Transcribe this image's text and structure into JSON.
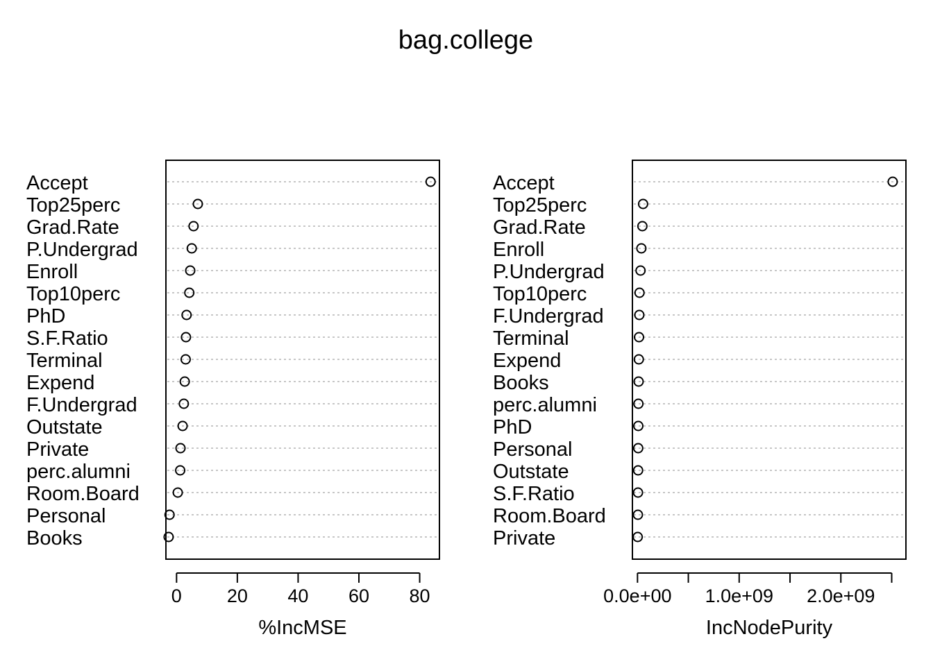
{
  "title": "bag.college",
  "chart_data": [
    {
      "type": "dotchart",
      "xlabel": "%IncMSE",
      "xlim": [
        -3.5,
        86.5
      ],
      "xticks": [
        0,
        20,
        40,
        60,
        80
      ],
      "xtick_labels": [
        "0",
        "20",
        "40",
        "60",
        "80"
      ],
      "grid": "dotted",
      "categories": [
        "Accept",
        "Top25perc",
        "Grad.Rate",
        "P.Undergrad",
        "Enroll",
        "Top10perc",
        "PhD",
        "S.F.Ratio",
        "Terminal",
        "Expend",
        "F.Undergrad",
        "Outstate",
        "Private",
        "perc.alumni",
        "Room.Board",
        "Personal",
        "Books"
      ],
      "values": [
        83.6,
        7.0,
        5.6,
        5.0,
        4.5,
        4.2,
        3.3,
        3.1,
        3.0,
        2.7,
        2.4,
        2.0,
        1.3,
        1.2,
        0.4,
        -2.3,
        -2.6
      ]
    },
    {
      "type": "dotchart",
      "xlabel": "IncNodePurity",
      "xlim": [
        -50000000.0,
        2640000000.0
      ],
      "xticks": [
        0,
        500000000,
        1000000000,
        1500000000,
        2000000000,
        2500000000
      ],
      "xtick_labels": [
        "0.0e+00",
        "",
        "1.0e+09",
        "",
        "2.0e+09",
        ""
      ],
      "grid": "dotted",
      "categories": [
        "Accept",
        "Top25perc",
        "Grad.Rate",
        "Enroll",
        "P.Undergrad",
        "Top10perc",
        "F.Undergrad",
        "Terminal",
        "Expend",
        "Books",
        "perc.alumni",
        "PhD",
        "Personal",
        "Outstate",
        "S.F.Ratio",
        "Room.Board",
        "Private"
      ],
      "values": [
        2510000000,
        55000000,
        48000000,
        38000000,
        30000000,
        20000000,
        18000000,
        15000000,
        13000000,
        11000000,
        9000000,
        8000000,
        7000000,
        6000000,
        5000000,
        4000000,
        2000000
      ]
    }
  ]
}
